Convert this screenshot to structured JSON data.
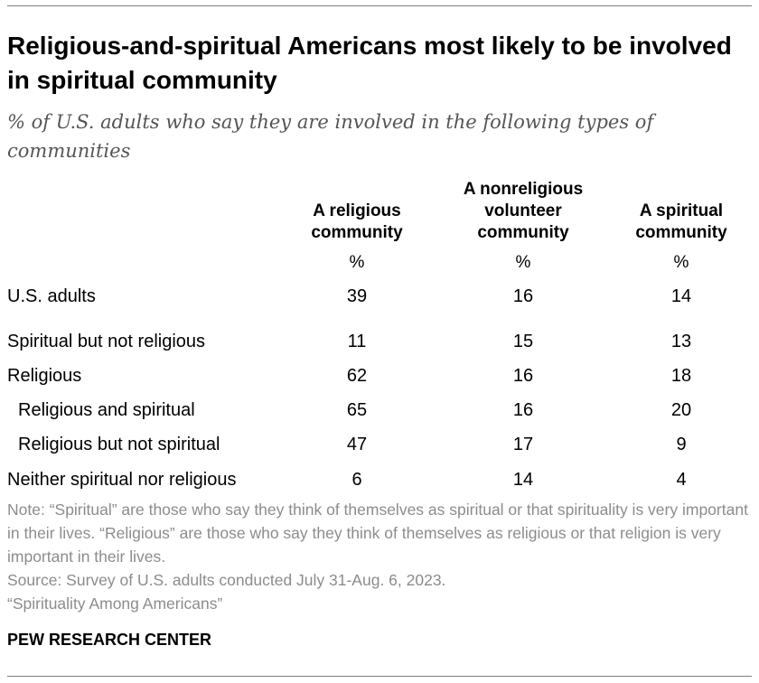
{
  "title": "Religious-and-spiritual Americans most likely to be involved in spiritual community",
  "subtitle": "% of U.S. adults who say they are involved in the following types of communities",
  "chart_data": {
    "type": "table",
    "unit_label": "%",
    "columns": [
      {
        "lines": [
          "A religious",
          "community"
        ]
      },
      {
        "lines": [
          "A nonreligious",
          "volunteer",
          "community"
        ]
      },
      {
        "lines": [
          "A spiritual",
          "community"
        ]
      }
    ],
    "rows": [
      {
        "label": "U.S. adults",
        "indent": false,
        "values": [
          "39",
          "16",
          "14"
        ]
      },
      {
        "label": "Spiritual but not religious",
        "indent": false,
        "values": [
          "11",
          "15",
          "13"
        ]
      },
      {
        "label": "Religious",
        "indent": false,
        "values": [
          "62",
          "16",
          "18"
        ]
      },
      {
        "label": "Religious and spiritual",
        "indent": true,
        "values": [
          "65",
          "16",
          "20"
        ]
      },
      {
        "label": "Religious but not spiritual",
        "indent": true,
        "values": [
          "47",
          "17",
          "9"
        ]
      },
      {
        "label": "Neither spiritual nor religious",
        "indent": false,
        "values": [
          "6",
          "14",
          "4"
        ]
      }
    ]
  },
  "footer": {
    "note": "Note: “Spiritual” are those who say they think of themselves as spiritual or that spirituality is very important in their lives. “Religious” are those who say they think of themselves as religious or that religion is very important in their lives.",
    "source": "Source: Survey of U.S. adults conducted July 31-Aug. 6, 2023.",
    "report": "“Spirituality Among Americans”",
    "brand": "PEW RESEARCH CENTER"
  }
}
